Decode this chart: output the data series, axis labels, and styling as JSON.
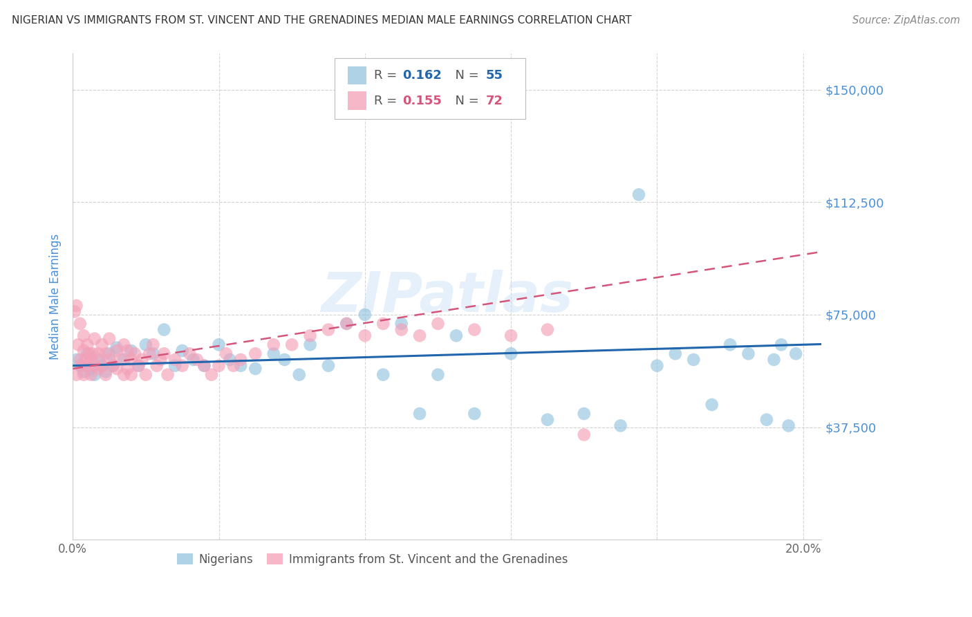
{
  "title": "NIGERIAN VS IMMIGRANTS FROM ST. VINCENT AND THE GRENADINES MEDIAN MALE EARNINGS CORRELATION CHART",
  "source": "Source: ZipAtlas.com",
  "ylabel": "Median Male Earnings",
  "xlim": [
    0.0,
    0.205
  ],
  "ylim": [
    0,
    162000
  ],
  "yticks": [
    0,
    37500,
    75000,
    112500,
    150000
  ],
  "ytick_labels": [
    "",
    "$37,500",
    "$75,000",
    "$112,500",
    "$150,000"
  ],
  "xticks": [
    0.0,
    0.04,
    0.08,
    0.12,
    0.16,
    0.2
  ],
  "xtick_labels": [
    "0.0%",
    "",
    "",
    "",
    "",
    "20.0%"
  ],
  "color_blue": "#94c4e0",
  "color_pink": "#f4a0b8",
  "color_line_blue": "#2166ac",
  "color_line_pink": "#d4547a",
  "color_ylabel": "#4a90d9",
  "color_ytick": "#4a90d9",
  "color_title": "#333333",
  "watermark": "ZIPatlas",
  "blue_x": [
    0.001,
    0.002,
    0.003,
    0.004,
    0.005,
    0.006,
    0.007,
    0.008,
    0.009,
    0.01,
    0.011,
    0.012,
    0.014,
    0.016,
    0.018,
    0.02,
    0.022,
    0.025,
    0.028,
    0.03,
    0.033,
    0.036,
    0.04,
    0.043,
    0.046,
    0.05,
    0.055,
    0.058,
    0.062,
    0.065,
    0.07,
    0.075,
    0.08,
    0.085,
    0.09,
    0.095,
    0.1,
    0.105,
    0.11,
    0.12,
    0.13,
    0.14,
    0.15,
    0.155,
    0.16,
    0.165,
    0.17,
    0.175,
    0.18,
    0.185,
    0.19,
    0.192,
    0.194,
    0.196,
    0.198
  ],
  "blue_y": [
    60000,
    58000,
    56000,
    62000,
    57000,
    55000,
    60000,
    58000,
    56000,
    62000,
    58000,
    64000,
    60000,
    63000,
    58000,
    65000,
    62000,
    70000,
    58000,
    63000,
    60000,
    58000,
    65000,
    60000,
    58000,
    57000,
    62000,
    60000,
    55000,
    65000,
    58000,
    72000,
    75000,
    55000,
    72000,
    42000,
    55000,
    68000,
    42000,
    62000,
    40000,
    42000,
    38000,
    115000,
    58000,
    62000,
    60000,
    45000,
    65000,
    62000,
    40000,
    60000,
    65000,
    38000,
    62000
  ],
  "pink_x": [
    0.0005,
    0.001,
    0.001,
    0.0015,
    0.002,
    0.002,
    0.0025,
    0.003,
    0.003,
    0.003,
    0.0035,
    0.004,
    0.004,
    0.0045,
    0.005,
    0.005,
    0.0055,
    0.006,
    0.006,
    0.007,
    0.007,
    0.008,
    0.008,
    0.009,
    0.009,
    0.01,
    0.01,
    0.011,
    0.012,
    0.012,
    0.013,
    0.014,
    0.014,
    0.015,
    0.015,
    0.016,
    0.016,
    0.017,
    0.018,
    0.019,
    0.02,
    0.021,
    0.022,
    0.023,
    0.024,
    0.025,
    0.026,
    0.028,
    0.03,
    0.032,
    0.034,
    0.036,
    0.038,
    0.04,
    0.042,
    0.044,
    0.046,
    0.05,
    0.055,
    0.06,
    0.065,
    0.07,
    0.075,
    0.08,
    0.085,
    0.09,
    0.095,
    0.1,
    0.11,
    0.12,
    0.13,
    0.14
  ],
  "pink_y": [
    76000,
    55000,
    78000,
    65000,
    60000,
    72000,
    58000,
    63000,
    55000,
    68000,
    60000,
    58000,
    65000,
    62000,
    60000,
    55000,
    62000,
    58000,
    67000,
    62000,
    57000,
    65000,
    58000,
    62000,
    55000,
    60000,
    67000,
    58000,
    63000,
    57000,
    60000,
    65000,
    55000,
    63000,
    57000,
    60000,
    55000,
    62000,
    58000,
    60000,
    55000,
    62000,
    65000,
    58000,
    60000,
    62000,
    55000,
    60000,
    58000,
    62000,
    60000,
    58000,
    55000,
    58000,
    62000,
    58000,
    60000,
    62000,
    65000,
    65000,
    68000,
    70000,
    72000,
    68000,
    72000,
    70000,
    68000,
    72000,
    70000,
    68000,
    70000,
    35000
  ]
}
